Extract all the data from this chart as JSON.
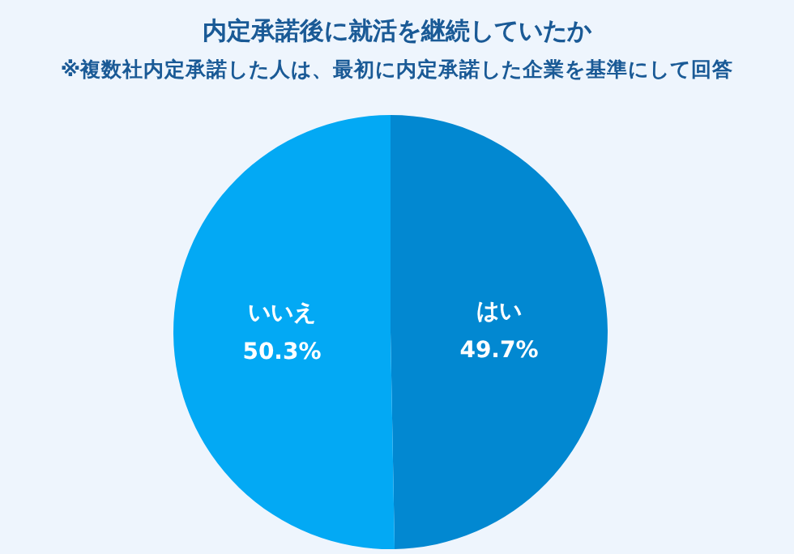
{
  "chart_data": {
    "type": "pie",
    "title": "内定承諾後に就活を継続していたか",
    "subtitle": "※複数社内定承諾した人は、最初に内定承諾した企業を基準にして回答",
    "categories": [
      "はい",
      "いいえ"
    ],
    "values": [
      49.7,
      50.3
    ],
    "colors": [
      "#0288d1",
      "#03a9f4"
    ],
    "value_labels": [
      "49.7%",
      "50.3%"
    ]
  }
}
